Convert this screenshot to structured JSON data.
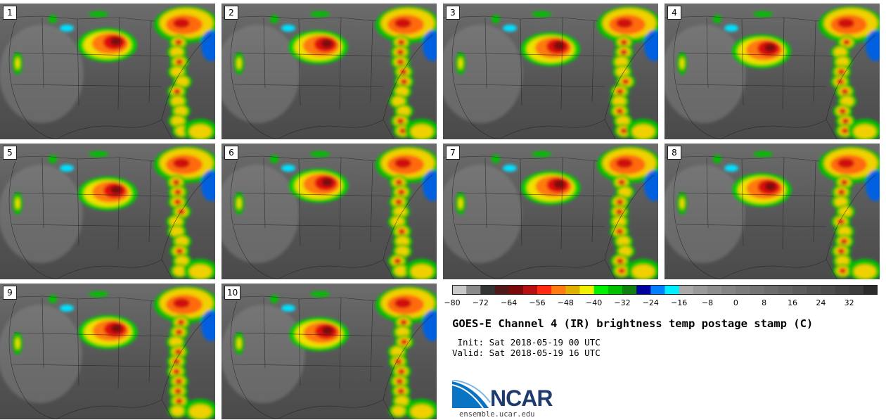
{
  "panels": [
    {
      "label": "1"
    },
    {
      "label": "2"
    },
    {
      "label": "3"
    },
    {
      "label": "4"
    },
    {
      "label": "5"
    },
    {
      "label": "6"
    },
    {
      "label": "7"
    },
    {
      "label": "8"
    },
    {
      "label": "9"
    },
    {
      "label": "10"
    }
  ],
  "colorbar": {
    "colors": [
      "#c8c8c8",
      "#8a8a8a",
      "#343434",
      "#501818",
      "#7a0a0a",
      "#b81010",
      "#ff2a10",
      "#ff7a10",
      "#e0b000",
      "#f0f000",
      "#00f000",
      "#00c000",
      "#108010",
      "#0000a0",
      "#0080ff",
      "#00f0ff",
      "#a8a8a8",
      "#9a9a9a",
      "#8e8e8e",
      "#848484",
      "#7c7c7c",
      "#747474",
      "#6c6c6c",
      "#646464",
      "#5c5c5c",
      "#545454",
      "#4c4c4c",
      "#444444",
      "#3c3c3c",
      "#2c2c2c"
    ],
    "ticks": [
      "-80",
      "-72",
      "-64",
      "-56",
      "-48",
      "-40",
      "-32",
      "-24",
      "-16",
      "-8",
      "0",
      "8",
      "16",
      "24",
      "32"
    ]
  },
  "title": "GOES-E Channel 4 (IR) brightness temp postage stamp (C)",
  "init": " Init: Sat 2018-05-19 00 UTC",
  "valid": "Valid: Sat 2018-05-19 16 UTC",
  "logo": {
    "text": "NCAR",
    "url": "ensemble.ucar.edu"
  }
}
